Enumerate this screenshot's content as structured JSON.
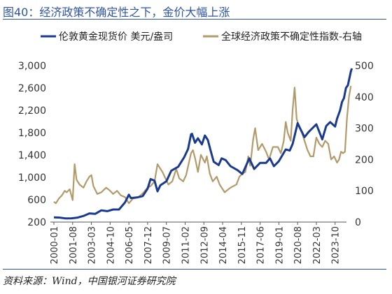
{
  "title": "图40：经济政策不确定性之下，金价大幅上涨",
  "source": "资料来源：Wind，中国银河证券研究院",
  "colors": {
    "gold_series": "#1a3a8f",
    "epu_series": "#b39a6a",
    "title_color": "#2e54a3"
  },
  "chart_data": {
    "type": "line",
    "legend_position": "top",
    "grid": false,
    "x_tick_labels": [
      "2000-01",
      "2001-08",
      "2003-03",
      "2004-10",
      "2006-05",
      "2007-12",
      "2009-07",
      "2011-02",
      "2012-09",
      "2014-04",
      "2015-11",
      "2017-06",
      "2019-01",
      "2020-08",
      "2022-03",
      "2023-10"
    ],
    "x_range": [
      "2000-01",
      "2024-06"
    ],
    "y_left": {
      "range": [
        200,
        3000
      ],
      "ticks": [
        "200",
        "600",
        "1,000",
        "1,400",
        "1,800",
        "2,200",
        "2,600",
        "3,000"
      ],
      "tick_values": [
        200,
        600,
        1000,
        1400,
        1800,
        2200,
        2600,
        3000
      ]
    },
    "y_right": {
      "range": [
        0,
        500
      ],
      "ticks": [
        "0",
        "100",
        "200",
        "300",
        "400",
        "500"
      ],
      "tick_values": [
        0,
        100,
        200,
        300,
        400,
        500
      ]
    },
    "series": [
      {
        "name": "伦敦黄金现货价 美元/盎司",
        "axis": "left",
        "points": [
          [
            "2000-01",
            285
          ],
          [
            "2000-07",
            280
          ],
          [
            "2001-01",
            265
          ],
          [
            "2001-07",
            268
          ],
          [
            "2002-01",
            280
          ],
          [
            "2002-07",
            310
          ],
          [
            "2003-01",
            355
          ],
          [
            "2003-07",
            348
          ],
          [
            "2004-01",
            410
          ],
          [
            "2004-07",
            395
          ],
          [
            "2005-01",
            425
          ],
          [
            "2005-07",
            425
          ],
          [
            "2006-01",
            550
          ],
          [
            "2006-05",
            690
          ],
          [
            "2006-07",
            630
          ],
          [
            "2007-01",
            640
          ],
          [
            "2007-07",
            665
          ],
          [
            "2007-12",
            800
          ],
          [
            "2008-03",
            970
          ],
          [
            "2008-07",
            940
          ],
          [
            "2008-10",
            750
          ],
          [
            "2009-01",
            860
          ],
          [
            "2009-07",
            930
          ],
          [
            "2009-12",
            1120
          ],
          [
            "2010-07",
            1190
          ],
          [
            "2011-01",
            1360
          ],
          [
            "2011-05",
            1510
          ],
          [
            "2011-08",
            1770
          ],
          [
            "2011-09",
            1780
          ],
          [
            "2011-12",
            1620
          ],
          [
            "2012-03",
            1700
          ],
          [
            "2012-07",
            1590
          ],
          [
            "2012-10",
            1750
          ],
          [
            "2013-01",
            1670
          ],
          [
            "2013-04",
            1470
          ],
          [
            "2013-07",
            1280
          ],
          [
            "2013-12",
            1220
          ],
          [
            "2014-03",
            1340
          ],
          [
            "2014-07",
            1310
          ],
          [
            "2014-12",
            1200
          ],
          [
            "2015-07",
            1130
          ],
          [
            "2015-12",
            1060
          ],
          [
            "2016-07",
            1340
          ],
          [
            "2016-12",
            1150
          ],
          [
            "2017-06",
            1260
          ],
          [
            "2017-12",
            1260
          ],
          [
            "2018-04",
            1340
          ],
          [
            "2018-08",
            1200
          ],
          [
            "2019-01",
            1290
          ],
          [
            "2019-08",
            1500
          ],
          [
            "2019-12",
            1480
          ],
          [
            "2020-03",
            1600
          ],
          [
            "2020-08",
            1970
          ],
          [
            "2020-11",
            1860
          ],
          [
            "2021-03",
            1720
          ],
          [
            "2021-07",
            1810
          ],
          [
            "2022-03",
            1950
          ],
          [
            "2022-09",
            1680
          ],
          [
            "2023-01",
            1920
          ],
          [
            "2023-05",
            1990
          ],
          [
            "2023-10",
            1910
          ],
          [
            "2023-12",
            2050
          ],
          [
            "2024-03",
            2200
          ],
          [
            "2024-05",
            2350
          ],
          [
            "2024-07",
            2420
          ],
          [
            "2024-09",
            2600
          ],
          [
            "2024-11",
            2650
          ],
          [
            "2025-02",
            2900
          ],
          [
            "2025-03",
            2950
          ]
        ]
      },
      {
        "name": "全球经济政策不确定性指数-右轴",
        "axis": "right",
        "points": [
          [
            "2000-01",
            65
          ],
          [
            "2000-03",
            60
          ],
          [
            "2000-06",
            75
          ],
          [
            "2000-09",
            85
          ],
          [
            "2000-12",
            100
          ],
          [
            "2001-02",
            95
          ],
          [
            "2001-05",
            105
          ],
          [
            "2001-08",
            70
          ],
          [
            "2001-10",
            185
          ],
          [
            "2001-12",
            135
          ],
          [
            "2002-03",
            120
          ],
          [
            "2002-07",
            110
          ],
          [
            "2002-10",
            130
          ],
          [
            "2003-01",
            145
          ],
          [
            "2003-03",
            150
          ],
          [
            "2003-05",
            115
          ],
          [
            "2003-09",
            90
          ],
          [
            "2004-01",
            95
          ],
          [
            "2004-06",
            110
          ],
          [
            "2004-10",
            100
          ],
          [
            "2005-01",
            90
          ],
          [
            "2005-05",
            100
          ],
          [
            "2005-09",
            85
          ],
          [
            "2006-01",
            80
          ],
          [
            "2006-05",
            60
          ],
          [
            "2006-09",
            75
          ],
          [
            "2007-03",
            80
          ],
          [
            "2007-08",
            95
          ],
          [
            "2007-12",
            110
          ],
          [
            "2008-03",
            115
          ],
          [
            "2008-07",
            130
          ],
          [
            "2008-10",
            185
          ],
          [
            "2008-12",
            175
          ],
          [
            "2009-03",
            160
          ],
          [
            "2009-06",
            140
          ],
          [
            "2009-09",
            120
          ],
          [
            "2010-01",
            130
          ],
          [
            "2010-05",
            170
          ],
          [
            "2010-08",
            140
          ],
          [
            "2010-12",
            130
          ],
          [
            "2011-03",
            150
          ],
          [
            "2011-08",
            220
          ],
          [
            "2011-10",
            230
          ],
          [
            "2011-12",
            205
          ],
          [
            "2012-03",
            160
          ],
          [
            "2012-06",
            215
          ],
          [
            "2012-10",
            190
          ],
          [
            "2012-12",
            210
          ],
          [
            "2013-03",
            155
          ],
          [
            "2013-06",
            130
          ],
          [
            "2013-10",
            145
          ],
          [
            "2014-01",
            120
          ],
          [
            "2014-06",
            95
          ],
          [
            "2014-12",
            110
          ],
          [
            "2015-06",
            120
          ],
          [
            "2015-09",
            145
          ],
          [
            "2015-12",
            155
          ],
          [
            "2016-03",
            160
          ],
          [
            "2016-06",
            210
          ],
          [
            "2016-08",
            180
          ],
          [
            "2016-11",
            265
          ],
          [
            "2017-01",
            300
          ],
          [
            "2017-04",
            230
          ],
          [
            "2017-08",
            250
          ],
          [
            "2017-12",
            225
          ],
          [
            "2018-03",
            200
          ],
          [
            "2018-07",
            240
          ],
          [
            "2018-12",
            240
          ],
          [
            "2019-03",
            220
          ],
          [
            "2019-06",
            260
          ],
          [
            "2019-08",
            320
          ],
          [
            "2019-10",
            285
          ],
          [
            "2020-01",
            260
          ],
          [
            "2020-03",
            360
          ],
          [
            "2020-05",
            430
          ],
          [
            "2020-07",
            330
          ],
          [
            "2020-09",
            310
          ],
          [
            "2020-12",
            290
          ],
          [
            "2021-03",
            260
          ],
          [
            "2021-06",
            230
          ],
          [
            "2021-09",
            210
          ],
          [
            "2021-12",
            210
          ],
          [
            "2022-03",
            270
          ],
          [
            "2022-06",
            250
          ],
          [
            "2022-09",
            240
          ],
          [
            "2022-12",
            260
          ],
          [
            "2023-03",
            250
          ],
          [
            "2023-06",
            200
          ],
          [
            "2023-09",
            210
          ],
          [
            "2023-12",
            190
          ],
          [
            "2024-02",
            200
          ],
          [
            "2024-04",
            225
          ],
          [
            "2024-06",
            220
          ],
          [
            "2024-08",
            225
          ],
          [
            "2024-10",
            330
          ],
          [
            "2024-12",
            400
          ],
          [
            "2025-02",
            435
          ]
        ]
      }
    ]
  }
}
